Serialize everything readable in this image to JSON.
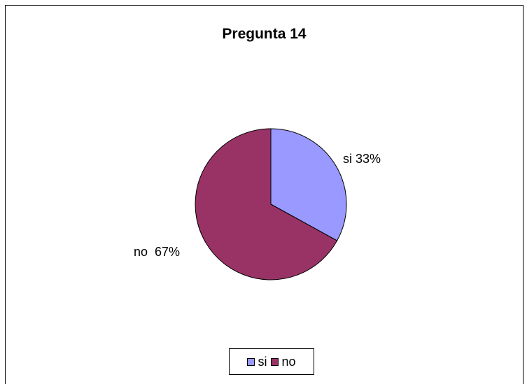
{
  "chart_data": {
    "type": "pie",
    "title": "Pregunta 14",
    "categories": [
      "si",
      "no"
    ],
    "values": [
      33,
      67
    ],
    "data_labels": [
      "si 33%",
      "no  67%"
    ],
    "colors": [
      "#9999ff",
      "#993366"
    ],
    "legend_position": "bottom"
  }
}
